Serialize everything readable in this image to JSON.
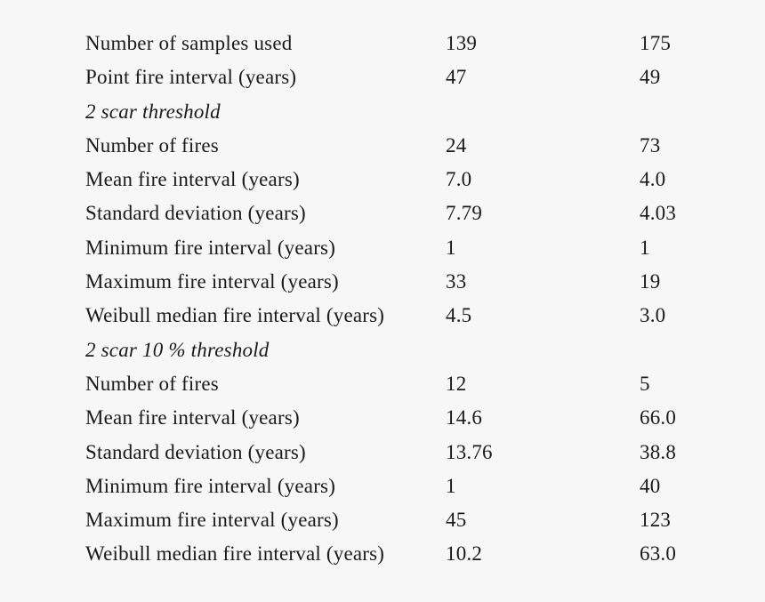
{
  "rows": [
    {
      "label": "Number of samples used",
      "a": "139",
      "b": "175"
    },
    {
      "label": "Point fire interval (years)",
      "a": "47",
      "b": "49"
    },
    {
      "section": "2 scar threshold"
    },
    {
      "label": "Number of fires",
      "a": "24",
      "b": "73"
    },
    {
      "label": "Mean fire interval (years)",
      "a": "7.0",
      "b": "4.0"
    },
    {
      "label": "Standard deviation (years)",
      "a": "7.79",
      "b": "4.03"
    },
    {
      "label": "Minimum fire interval (years)",
      "a": "1",
      "b": "1"
    },
    {
      "label": "Maximum fire interval (years)",
      "a": "33",
      "b": "19"
    },
    {
      "label": "Weibull median fire interval (years)",
      "a": "4.5",
      "b": "3.0"
    },
    {
      "section": "2 scar 10 % threshold"
    },
    {
      "label": "Number of fires",
      "a": "12",
      "b": "5"
    },
    {
      "label": "Mean fire interval (years)",
      "a": "14.6",
      "b": "66.0"
    },
    {
      "label": "Standard deviation (years)",
      "a": "13.76",
      "b": "38.8"
    },
    {
      "label": "Minimum fire interval (years)",
      "a": "1",
      "b": "40"
    },
    {
      "label": "Maximum fire interval (years)",
      "a": "45",
      "b": "123"
    },
    {
      "label": "Weibull median fire interval (years)",
      "a": "10.2",
      "b": "63.0"
    }
  ]
}
